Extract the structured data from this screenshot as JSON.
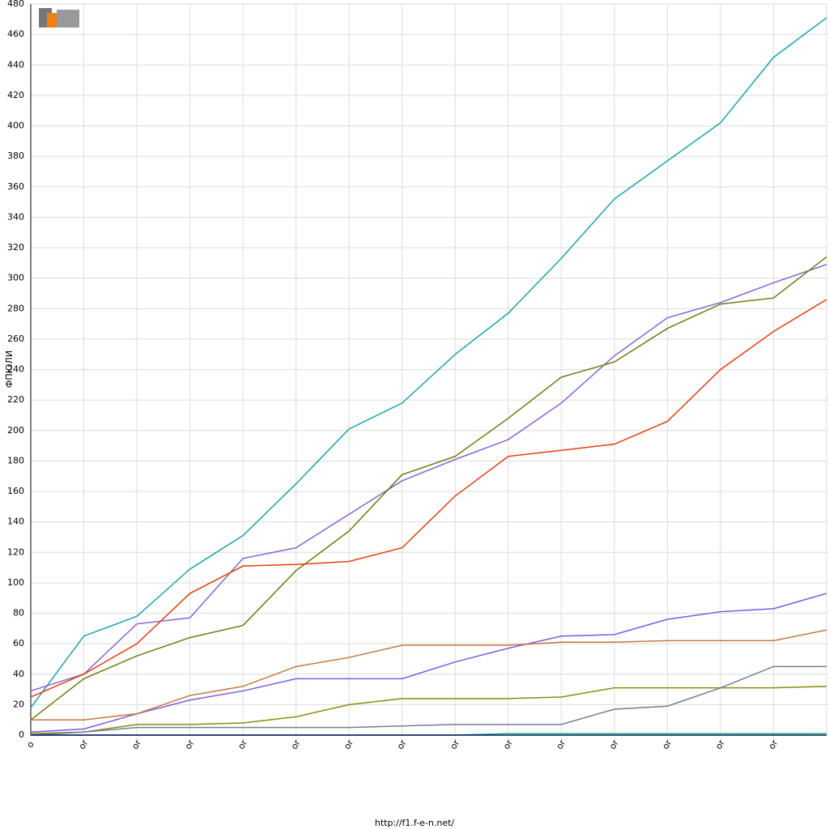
{
  "chart_data": {
    "type": "line",
    "y_label": "ФПЮЛИ",
    "footer": "http://f1.f-e-n.net/",
    "categories": [
      "o",
      "or",
      "or",
      "or",
      "or",
      "or",
      "or",
      "or",
      "or",
      "or",
      "or",
      "or",
      "or",
      "or",
      "or",
      null
    ],
    "ylim": [
      0,
      480
    ],
    "yticks": [
      0,
      20,
      40,
      60,
      80,
      100,
      120,
      140,
      160,
      180,
      200,
      220,
      240,
      260,
      280,
      300,
      320,
      340,
      360,
      380,
      400,
      420,
      440,
      460,
      480
    ],
    "grid": true,
    "series": [
      {
        "color": "#1aa3a8",
        "values": [
          18,
          65,
          78,
          109,
          131,
          165,
          201,
          218,
          250,
          277,
          313,
          352,
          377,
          402,
          445,
          471
        ]
      },
      {
        "color": "#8a62d6",
        "values": [
          29,
          40,
          73,
          77,
          116,
          123,
          145,
          167,
          181,
          194,
          218,
          249,
          274,
          284,
          297,
          309
        ]
      },
      {
        "color": "#6b7a10",
        "values": [
          10,
          37,
          52,
          64,
          72,
          108,
          134,
          171,
          183,
          208,
          235,
          245,
          267,
          283,
          287,
          314
        ]
      },
      {
        "color": "#e0400e",
        "values": [
          25,
          40,
          60,
          93,
          111,
          112,
          114,
          123,
          157,
          183,
          187,
          191,
          206,
          240,
          265,
          286
        ]
      },
      {
        "color": "#7a5ce0",
        "values": [
          2,
          4,
          14,
          23,
          29,
          37,
          37,
          37,
          48,
          57,
          65,
          66,
          76,
          81,
          83,
          93
        ]
      },
      {
        "color": "#c07840",
        "values": [
          10,
          10,
          14,
          26,
          32,
          45,
          51,
          59,
          59,
          59,
          61,
          61,
          62,
          62,
          62,
          69
        ]
      },
      {
        "color": "#8a8a10",
        "values": [
          1,
          2,
          7,
          7,
          8,
          12,
          20,
          24,
          24,
          24,
          25,
          31,
          31,
          31,
          31,
          32
        ]
      },
      {
        "color": "#708090",
        "values": [
          0,
          2,
          5,
          5,
          5,
          5,
          5,
          6,
          7,
          7,
          7,
          17,
          19,
          31,
          45,
          45
        ]
      },
      {
        "color": "#10c080",
        "values": [
          0,
          0,
          0,
          0,
          0,
          0,
          0,
          0,
          0,
          1,
          1,
          1,
          1,
          1,
          1,
          1
        ]
      },
      {
        "color": "#101060",
        "values": [
          0,
          0,
          0,
          0,
          0,
          0,
          0,
          0,
          0,
          0,
          0,
          0,
          0,
          0,
          0,
          0
        ]
      }
    ]
  }
}
